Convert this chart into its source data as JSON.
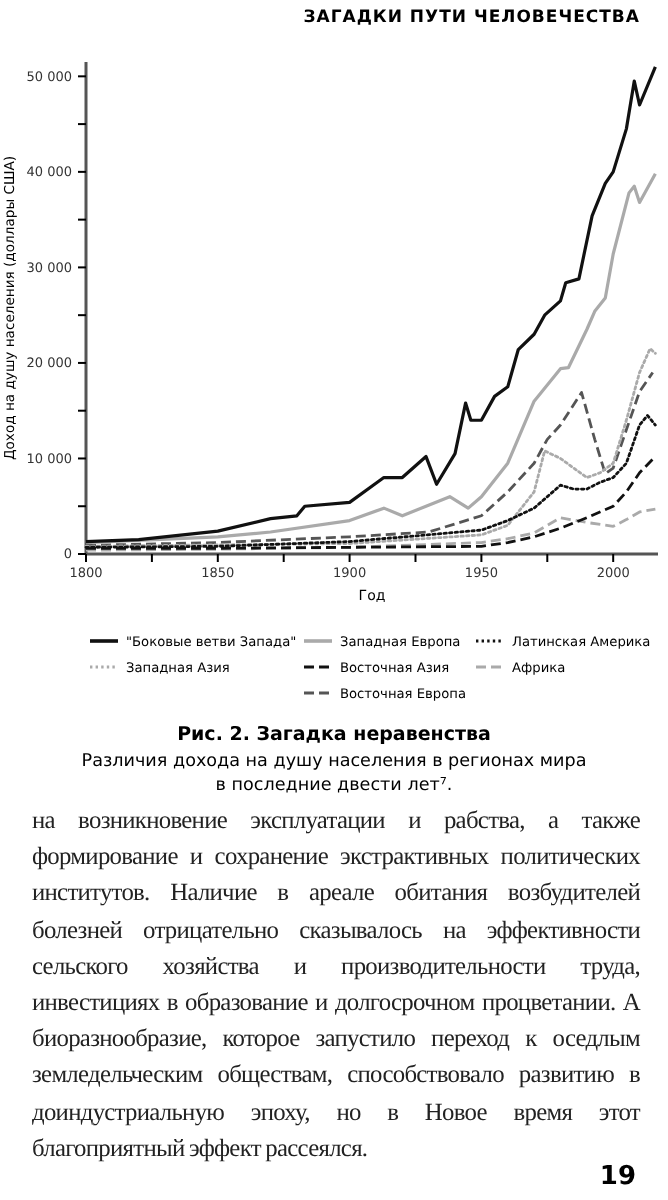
{
  "chart_data": {
    "type": "line",
    "title": "Рис. 2. Загадка неравенства",
    "subtitle": "Различия дохода на душу населения в регионах мира в последние двести лет⁷.",
    "xlabel": "Год",
    "ylabel": "Доход на душу населения (доллары США)",
    "annotations": [
      "ЗАГАДКИ ПУТИ ЧЕЛОВЕЧЕСТВА",
      "на возникновение эксплуатации и рабства, а также формирование и сохранение экстрактивных политических институтов. Наличие в ареале обитания возбудителей болезней отрицательно сказывалось на эффективности сельского хозяйства и производительности труда, инвестициях в образование и долгосрочном процветании. А биоразнообразие, которое запустило переход к оседлым земледельческим обществам, способствовало развитию в доиндустриальную эпоху, но в Новое время этот благоприятный эффект рассеялся.",
      "19"
    ],
    "xlim": [
      1800,
      2017
    ],
    "ylim": [
      0,
      51500
    ],
    "xticks": [
      1800,
      {
        "value": 1825,
        "label": null
      },
      1850,
      {
        "value": 1875,
        "label": null
      },
      1900,
      {
        "value": 1925,
        "label": null
      },
      1950,
      {
        "value": 1975,
        "label": null
      },
      2000
    ],
    "yticks": [
      {
        "value": 0,
        "label": "0"
      },
      {
        "value": 5000,
        "label": null
      },
      {
        "value": 10000,
        "label": "10 000"
      },
      {
        "value": 15000,
        "label": null
      },
      {
        "value": 20000,
        "label": "20 000"
      },
      {
        "value": 25000,
        "label": null
      },
      {
        "value": 30000,
        "label": "30 000"
      },
      {
        "value": 35000,
        "label": null
      },
      {
        "value": 40000,
        "label": "40 000"
      },
      {
        "value": 45000,
        "label": null
      },
      {
        "value": 50000,
        "label": "50 000"
      }
    ],
    "grid": false,
    "legend": "bottom",
    "marker": "none",
    "series": [
      {
        "name": "\"Боковые ветви Запада\"",
        "color": "#111111",
        "line_style": "solid",
        "x": [
          1800,
          1820,
          1850,
          1870,
          1880,
          1883,
          1900,
          1910,
          1913,
          1920,
          1929,
          1933,
          1940,
          1944,
          1946,
          1950,
          1955,
          1960,
          1964,
          1970,
          1974,
          1980,
          1982,
          1987,
          1992,
          1997,
          2000,
          2005,
          2008,
          2010,
          2016
        ],
        "values": [
          1300,
          1500,
          2400,
          3700,
          4000,
          5000,
          5400,
          7400,
          8000,
          8000,
          10200,
          7300,
          10500,
          15800,
          14000,
          14000,
          16500,
          17500,
          21400,
          23000,
          25000,
          26500,
          28400,
          28800,
          35400,
          38800,
          40000,
          44500,
          49500,
          47000,
          51000
        ]
      },
      {
        "name": "Западная Европа",
        "color": "#aaaaaa",
        "line_style": "solid",
        "x": [
          1800,
          1850,
          1870,
          1900,
          1913,
          1920,
          1929,
          1938,
          1945,
          1950,
          1960,
          1970,
          1973,
          1980,
          1983,
          1990,
          1993,
          1997,
          2000,
          2006,
          2008,
          2010,
          2016
        ],
        "values": [
          1200,
          1800,
          2300,
          3500,
          4800,
          4000,
          5000,
          6000,
          4800,
          6000,
          9500,
          16000,
          17000,
          19400,
          19500,
          23500,
          25400,
          26800,
          31400,
          37800,
          38500,
          36800,
          39800
        ]
      },
      {
        "name": "Латинская Америка",
        "color": "#111111",
        "line_style": "dotted",
        "x": [
          1800,
          1850,
          1900,
          1950,
          1960,
          1970,
          1980,
          1985,
          1990,
          1995,
          2000,
          2005,
          2010,
          2013,
          2016
        ],
        "values": [
          700,
          800,
          1300,
          2500,
          3500,
          4800,
          7200,
          6800,
          6800,
          7500,
          8000,
          9500,
          13500,
          14500,
          13500
        ]
      },
      {
        "name": "Западная Азия",
        "color": "#aaaaaa",
        "line_style": "dotted",
        "x": [
          1800,
          1900,
          1950,
          1960,
          1970,
          1974,
          1980,
          1990,
          1995,
          2000,
          2005,
          2010,
          2014,
          2016
        ],
        "values": [
          800,
          1100,
          2000,
          3000,
          6500,
          10800,
          10000,
          8000,
          8500,
          9500,
          14000,
          19000,
          21500,
          21000
        ]
      },
      {
        "name": "Восточная Азия",
        "color": "#111111",
        "line_style": "dashed",
        "x": [
          1800,
          1850,
          1900,
          1950,
          1960,
          1970,
          1980,
          1990,
          2000,
          2005,
          2010,
          2016
        ],
        "values": [
          600,
          600,
          700,
          800,
          1200,
          1800,
          2700,
          3800,
          5000,
          6500,
          8500,
          10200
        ]
      },
      {
        "name": "Африка",
        "color": "#aaaaaa",
        "line_style": "dashed",
        "x": [
          1800,
          1850,
          1900,
          1950,
          1960,
          1970,
          1980,
          1990,
          2000,
          2005,
          2010,
          2016
        ],
        "values": [
          400,
          500,
          700,
          1200,
          1600,
          2200,
          3800,
          3300,
          2900,
          3600,
          4400,
          4700
        ]
      },
      {
        "name": "Восточная Европа",
        "color": "#555555",
        "line_style": "dashed",
        "x": [
          1800,
          1850,
          1900,
          1930,
          1950,
          1960,
          1970,
          1975,
          1980,
          1988,
          1993,
          1997,
          2000,
          2005,
          2010,
          2015
        ],
        "values": [
          900,
          1200,
          1800,
          2300,
          4000,
          6500,
          9500,
          12000,
          13500,
          16900,
          12000,
          8400,
          9000,
          13000,
          17000,
          19000
        ]
      }
    ]
  }
}
